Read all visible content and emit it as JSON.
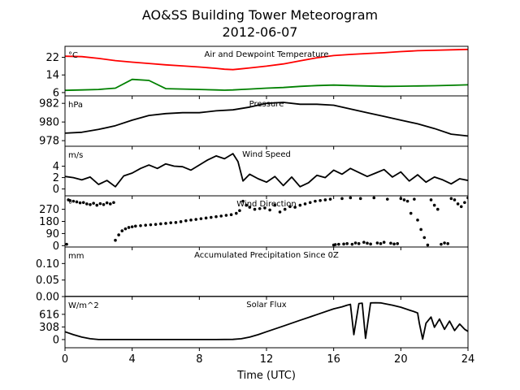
{
  "figure": {
    "title_line1": "AO&SS Building Tower Meteorogram",
    "title_line2": "2012-06-07",
    "xlabel": "Time (UTC)",
    "xlim": [
      0,
      24
    ],
    "xticks": [
      0,
      4,
      8,
      12,
      16,
      20,
      24
    ]
  },
  "colors": {
    "temperature": "#ff0000",
    "dewpoint": "#008000",
    "line": "#000000"
  },
  "chart_data": [
    {
      "type": "line",
      "title": "Air and Dewpoint Temperature",
      "unit": "°C",
      "ylim": [
        4.5,
        27
      ],
      "yticks": [
        6,
        14,
        22
      ],
      "x": [
        0,
        1,
        2,
        3,
        4,
        5,
        6,
        7,
        8,
        9,
        9.5,
        10,
        10.5,
        11,
        12,
        13,
        14,
        15,
        16,
        17,
        18,
        19,
        20,
        21,
        22,
        23,
        24
      ],
      "series": [
        {
          "name": "Temperature",
          "color": "#ff0000",
          "values": [
            22.5,
            22.3,
            21.5,
            20.5,
            19.8,
            19.2,
            18.6,
            18.1,
            17.6,
            17.0,
            16.6,
            16.4,
            16.8,
            17.2,
            18.0,
            19.0,
            20.4,
            21.8,
            22.8,
            23.3,
            23.7,
            24.1,
            24.6,
            25.0,
            25.2,
            25.4,
            25.6
          ]
        },
        {
          "name": "Dewpoint",
          "color": "#008000",
          "values": [
            7.0,
            7.2,
            7.4,
            8.0,
            12.0,
            11.5,
            7.8,
            7.6,
            7.4,
            7.2,
            7.1,
            7.2,
            7.4,
            7.6,
            8.0,
            8.3,
            8.8,
            9.2,
            9.4,
            9.2,
            9.0,
            8.8,
            8.9,
            9.0,
            9.1,
            9.3,
            9.5
          ]
        }
      ]
    },
    {
      "type": "line",
      "title": "Pressure",
      "unit": "hPa",
      "ylim": [
        977.4,
        982.8
      ],
      "yticks": [
        978,
        980,
        982
      ],
      "x": [
        0,
        1,
        2,
        3,
        4,
        5,
        6,
        7,
        8,
        9,
        10,
        11,
        12,
        13,
        14,
        15,
        16,
        17,
        18,
        19,
        20,
        21,
        22,
        23,
        24
      ],
      "series": [
        {
          "name": "Pressure",
          "color": "#000000",
          "values": [
            978.8,
            978.9,
            979.2,
            979.6,
            980.2,
            980.7,
            980.9,
            981.0,
            981.0,
            981.2,
            981.3,
            981.6,
            982.0,
            982.1,
            981.9,
            981.9,
            981.8,
            981.4,
            981.0,
            980.6,
            980.2,
            979.8,
            979.3,
            978.7,
            978.5
          ]
        }
      ]
    },
    {
      "type": "line",
      "title": "Wind Speed",
      "unit": "m/s",
      "ylim": [
        -1.2,
        7.5
      ],
      "yticks": [
        0,
        2,
        4
      ],
      "x": [
        0,
        0.5,
        1,
        1.5,
        2,
        2.5,
        3,
        3.5,
        4,
        4.5,
        5,
        5.5,
        6,
        6.5,
        7,
        7.5,
        8,
        8.5,
        9,
        9.5,
        10,
        10.3,
        10.6,
        11,
        11.5,
        12,
        12.5,
        13,
        13.5,
        14,
        14.5,
        15,
        15.5,
        16,
        16.5,
        17,
        17.5,
        18,
        18.5,
        19,
        19.5,
        20,
        20.5,
        21,
        21.5,
        22,
        22.5,
        23,
        23.5,
        24
      ],
      "series": [
        {
          "name": "Wind Speed",
          "color": "#000000",
          "values": [
            2.2,
            2.0,
            1.6,
            2.1,
            0.8,
            1.5,
            0.4,
            2.3,
            2.8,
            3.6,
            4.2,
            3.6,
            4.4,
            4.0,
            3.9,
            3.3,
            4.2,
            5.1,
            5.8,
            5.3,
            6.2,
            4.8,
            1.4,
            2.6,
            1.8,
            1.2,
            2.2,
            0.6,
            2.1,
            0.4,
            1.1,
            2.4,
            2.0,
            3.3,
            2.6,
            3.6,
            2.9,
            2.2,
            2.8,
            3.4,
            2.1,
            3.0,
            1.4,
            2.5,
            1.2,
            2.1,
            1.6,
            0.9,
            1.8,
            1.5
          ]
        }
      ]
    },
    {
      "type": "scatter",
      "title": "Wind Direction",
      "unit": "°",
      "ylim": [
        -10,
        370
      ],
      "yticks": [
        0,
        90,
        180,
        270
      ],
      "series": [
        {
          "name": "Wind Direction",
          "color": "#000000",
          "x": [
            0.1,
            0.2,
            0.3,
            0.5,
            0.7,
            0.9,
            1.1,
            1.3,
            1.5,
            1.7,
            1.9,
            2.1,
            2.3,
            2.5,
            2.7,
            2.9,
            3.0,
            3.2,
            3.4,
            3.6,
            3.8,
            4.0,
            4.2,
            4.5,
            4.8,
            5.1,
            5.4,
            5.7,
            6.0,
            6.3,
            6.6,
            6.9,
            7.2,
            7.5,
            7.8,
            8.1,
            8.4,
            8.7,
            9.0,
            9.3,
            9.6,
            9.9,
            10.2,
            10.4,
            10.6,
            10.8,
            11.0,
            11.3,
            11.6,
            11.9,
            12.2,
            12.5,
            12.8,
            13.1,
            13.4,
            13.7,
            14.0,
            14.3,
            14.6,
            14.9,
            15.2,
            15.5,
            15.8,
            16.0,
            16.1,
            16.3,
            16.5,
            16.6,
            16.8,
            17.0,
            17.1,
            17.3,
            17.5,
            17.6,
            17.8,
            18.0,
            18.2,
            18.4,
            18.6,
            18.8,
            19.0,
            19.2,
            19.4,
            19.6,
            19.8,
            20.0,
            20.2,
            20.4,
            20.6,
            20.8,
            21.0,
            21.2,
            21.4,
            21.6,
            21.8,
            22.0,
            22.2,
            22.4,
            22.6,
            22.8,
            23.0,
            23.2,
            23.4,
            23.6,
            23.8,
            24.0
          ],
          "y": [
            10,
            340,
            335,
            330,
            325,
            318,
            320,
            310,
            305,
            315,
            300,
            312,
            305,
            318,
            310,
            320,
            40,
            80,
            110,
            125,
            135,
            140,
            145,
            148,
            152,
            155,
            158,
            162,
            165,
            170,
            172,
            178,
            185,
            190,
            195,
            200,
            205,
            210,
            215,
            220,
            225,
            230,
            240,
            260,
            330,
            300,
            285,
            270,
            275,
            280,
            265,
            300,
            250,
            270,
            290,
            285,
            300,
            310,
            320,
            330,
            335,
            340,
            345,
            5,
            8,
            10,
            350,
            12,
            15,
            355,
            10,
            20,
            15,
            350,
            25,
            18,
            12,
            355,
            20,
            15,
            25,
            345,
            18,
            12,
            15,
            350,
            340,
            330,
            240,
            345,
            190,
            120,
            60,
            5,
            340,
            300,
            270,
            10,
            20,
            15,
            350,
            340,
            310,
            290,
            320,
            355
          ]
        }
      ]
    },
    {
      "type": "line",
      "title": "Accumulated Precipitation Since 0Z",
      "unit": "mm",
      "ylim": [
        0,
        0.15
      ],
      "yticks": [
        0.0,
        0.05,
        0.1
      ],
      "ytick_labels": [
        "0.00",
        "0.05",
        "0.10"
      ],
      "x": [
        0,
        24
      ],
      "series": [
        {
          "name": "Precipitation",
          "color": "#000000",
          "values": [
            0,
            0
          ]
        }
      ]
    },
    {
      "type": "line",
      "title": "Solar Flux",
      "unit": "W/m^2",
      "ylim": [
        -200,
        1050
      ],
      "yticks": [
        0,
        308,
        616
      ],
      "x": [
        0,
        0.5,
        1,
        1.5,
        2,
        3,
        4,
        5,
        6,
        7,
        8,
        9,
        10,
        10.5,
        11,
        11.5,
        12,
        13,
        14,
        15,
        16,
        16.5,
        16.8,
        17,
        17.2,
        17.5,
        17.7,
        17.9,
        18.2,
        18.5,
        18.8,
        19,
        19.5,
        20,
        20.5,
        20.8,
        21,
        21.1,
        21.3,
        21.5,
        21.8,
        22,
        22.3,
        22.6,
        22.9,
        23.2,
        23.5,
        23.8,
        24
      ],
      "series": [
        {
          "name": "Solar Flux",
          "color": "#000000",
          "values": [
            190,
            120,
            60,
            20,
            0,
            0,
            0,
            0,
            0,
            0,
            0,
            0,
            5,
            20,
            60,
            120,
            190,
            330,
            470,
            610,
            750,
            800,
            840,
            860,
            120,
            880,
            890,
            30,
            895,
            900,
            895,
            880,
            840,
            790,
            720,
            680,
            650,
            400,
            10,
            400,
            550,
            300,
            500,
            250,
            450,
            220,
            380,
            250,
            200
          ]
        }
      ]
    }
  ]
}
